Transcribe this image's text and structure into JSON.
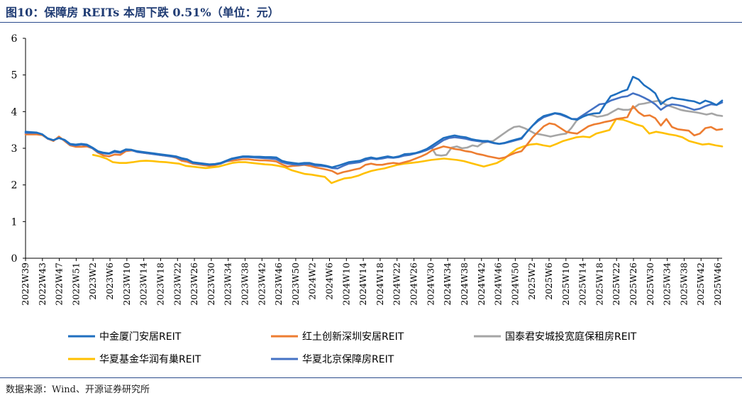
{
  "header": {
    "title": "图10：保障房 REITs 本周下跌 0.51%（单位：元）"
  },
  "footer": {
    "source": "数据来源：Wind、开源证券研究所"
  },
  "chart_data": {
    "type": "line",
    "ylim": [
      0,
      6
    ],
    "yticks": [
      0,
      1,
      2,
      3,
      4,
      5,
      6
    ],
    "grid": false,
    "legend_position": "bottom",
    "x_tick_labels": [
      "2022W39",
      "2022W43",
      "2022W47",
      "2022W51",
      "2023W2",
      "2023W6",
      "2023W10",
      "2023W14",
      "2023W18",
      "2023W22",
      "2023W26",
      "2023W30",
      "2023W34",
      "2023W38",
      "2023W42",
      "2023W46",
      "2023W50",
      "2024W2",
      "2024W6",
      "2024W10",
      "2024W14",
      "2024W18",
      "2024W22",
      "2024W26",
      "2024W30",
      "2024W34",
      "2024W38",
      "2024W42",
      "2024W46",
      "2024W50",
      "2025W2",
      "2025W6",
      "2025W10",
      "2025W14",
      "2025W18",
      "2025W22",
      "2025W26",
      "2025W30",
      "2025W34",
      "2025W38",
      "2025W42",
      "2025W46"
    ],
    "series": [
      {
        "name": "中金厦门安居REIT",
        "color": "#1f6fbf",
        "start": 0,
        "values": [
          3.45,
          3.44,
          3.43,
          3.38,
          3.27,
          3.22,
          3.28,
          3.23,
          3.12,
          3.1,
          3.12,
          3.1,
          3.02,
          2.92,
          2.88,
          2.86,
          2.93,
          2.9,
          2.97,
          2.96,
          2.92,
          2.9,
          2.88,
          2.86,
          2.84,
          2.82,
          2.8,
          2.78,
          2.73,
          2.7,
          2.62,
          2.6,
          2.58,
          2.56,
          2.57,
          2.6,
          2.66,
          2.72,
          2.75,
          2.78,
          2.78,
          2.77,
          2.77,
          2.76,
          2.76,
          2.75,
          2.66,
          2.62,
          2.6,
          2.58,
          2.6,
          2.6,
          2.56,
          2.55,
          2.52,
          2.48,
          2.52,
          2.57,
          2.62,
          2.64,
          2.66,
          2.72,
          2.75,
          2.72,
          2.75,
          2.78,
          2.75,
          2.78,
          2.84,
          2.85,
          2.87,
          2.92,
          2.98,
          3.08,
          3.18,
          3.28,
          3.32,
          3.35,
          3.32,
          3.3,
          3.25,
          3.22,
          3.2,
          3.2,
          3.15,
          3.12,
          3.15,
          3.2,
          3.24,
          3.28,
          3.45,
          3.62,
          3.78,
          3.88,
          3.92,
          3.96,
          3.94,
          3.88,
          3.8,
          3.78,
          3.86,
          3.92,
          3.95,
          3.96,
          4.2,
          4.42,
          4.48,
          4.55,
          4.6,
          4.95,
          4.88,
          4.72,
          4.62,
          4.5,
          4.2,
          4.32,
          4.38,
          4.35,
          4.33,
          4.3,
          4.28,
          4.22,
          4.3,
          4.25,
          4.18,
          4.3
        ]
      },
      {
        "name": "红土创新深圳安居REIT",
        "color": "#ed7d31",
        "start": 0,
        "values": [
          3.38,
          3.38,
          3.38,
          3.36,
          3.26,
          3.2,
          3.32,
          3.2,
          3.08,
          3.04,
          3.04,
          3.05,
          3.0,
          2.88,
          2.8,
          2.78,
          2.83,
          2.82,
          2.92,
          2.94,
          2.92,
          2.88,
          2.86,
          2.85,
          2.82,
          2.8,
          2.78,
          2.74,
          2.66,
          2.63,
          2.58,
          2.56,
          2.54,
          2.52,
          2.54,
          2.58,
          2.64,
          2.66,
          2.68,
          2.7,
          2.7,
          2.68,
          2.67,
          2.67,
          2.66,
          2.64,
          2.56,
          2.5,
          2.52,
          2.53,
          2.55,
          2.52,
          2.48,
          2.45,
          2.42,
          2.38,
          2.3,
          2.35,
          2.38,
          2.42,
          2.45,
          2.55,
          2.58,
          2.55,
          2.55,
          2.58,
          2.6,
          2.58,
          2.62,
          2.66,
          2.72,
          2.78,
          2.85,
          2.95,
          3.0,
          3.05,
          3.02,
          2.98,
          2.96,
          2.92,
          2.9,
          2.85,
          2.82,
          2.78,
          2.75,
          2.72,
          2.75,
          2.82,
          2.88,
          2.92,
          3.1,
          3.3,
          3.45,
          3.6,
          3.68,
          3.65,
          3.55,
          3.45,
          3.42,
          3.4,
          3.5,
          3.6,
          3.65,
          3.68,
          3.72,
          3.75,
          3.8,
          3.82,
          3.85,
          4.15,
          3.98,
          3.88,
          3.9,
          3.82,
          3.62,
          3.8,
          3.58,
          3.52,
          3.5,
          3.48,
          3.35,
          3.4,
          3.55,
          3.58,
          3.5,
          3.52
        ]
      },
      {
        "name": "国泰君安城投宽庭保租房REIT",
        "color": "#a5a5a5",
        "start": 73,
        "values": [
          3.05,
          2.82,
          2.8,
          2.82,
          3.02,
          3.05,
          3.0,
          3.02,
          3.08,
          3.05,
          3.15,
          3.18,
          3.2,
          3.3,
          3.4,
          3.5,
          3.58,
          3.6,
          3.55,
          3.48,
          3.4,
          3.38,
          3.35,
          3.32,
          3.35,
          3.38,
          3.4,
          3.55,
          3.75,
          3.88,
          3.92,
          3.9,
          3.86,
          3.88,
          3.92,
          4.0,
          4.08,
          4.05,
          4.05,
          4.1,
          4.2,
          4.22,
          4.25,
          4.28,
          4.3,
          4.2,
          4.15,
          4.1,
          4.05,
          4.02,
          4.0,
          3.98,
          3.95,
          3.92,
          3.95,
          3.9,
          3.88
        ]
      },
      {
        "name": "华夏基金华润有巢REIT",
        "color": "#ffc000",
        "start": 12,
        "values": [
          2.82,
          2.78,
          2.72,
          2.62,
          2.6,
          2.6,
          2.62,
          2.65,
          2.66,
          2.65,
          2.63,
          2.62,
          2.6,
          2.58,
          2.52,
          2.5,
          2.48,
          2.46,
          2.48,
          2.5,
          2.55,
          2.6,
          2.62,
          2.62,
          2.6,
          2.58,
          2.56,
          2.55,
          2.52,
          2.48,
          2.4,
          2.35,
          2.3,
          2.28,
          2.25,
          2.22,
          2.05,
          2.12,
          2.18,
          2.2,
          2.25,
          2.32,
          2.38,
          2.42,
          2.45,
          2.5,
          2.55,
          2.58,
          2.6,
          2.62,
          2.65,
          2.68,
          2.7,
          2.72,
          2.7,
          2.68,
          2.65,
          2.6,
          2.55,
          2.5,
          2.55,
          2.6,
          2.7,
          2.85,
          2.98,
          3.05,
          3.1,
          3.12,
          3.08,
          3.05,
          3.12,
          3.2,
          3.25,
          3.3,
          3.32,
          3.3,
          3.4,
          3.45,
          3.5,
          3.8,
          3.78,
          3.72,
          3.65,
          3.6,
          3.4,
          3.45,
          3.42,
          3.38,
          3.35,
          3.3,
          3.2,
          3.15,
          3.1,
          3.12,
          3.08,
          3.05
        ]
      },
      {
        "name": "华夏北京保障房REIT",
        "color": "#4472c4",
        "start": 0,
        "values": [
          3.42,
          3.42,
          3.42,
          3.38,
          3.26,
          3.22,
          3.28,
          3.22,
          3.1,
          3.08,
          3.1,
          3.08,
          3.0,
          2.9,
          2.86,
          2.85,
          2.9,
          2.88,
          2.95,
          2.95,
          2.9,
          2.88,
          2.86,
          2.84,
          2.82,
          2.8,
          2.78,
          2.76,
          2.7,
          2.68,
          2.6,
          2.58,
          2.56,
          2.55,
          2.56,
          2.58,
          2.64,
          2.7,
          2.73,
          2.76,
          2.76,
          2.75,
          2.74,
          2.73,
          2.72,
          2.7,
          2.62,
          2.58,
          2.56,
          2.55,
          2.56,
          2.57,
          2.53,
          2.52,
          2.5,
          2.46,
          2.45,
          2.52,
          2.58,
          2.6,
          2.62,
          2.68,
          2.72,
          2.7,
          2.72,
          2.75,
          2.74,
          2.76,
          2.8,
          2.82,
          2.86,
          2.9,
          2.95,
          3.02,
          3.12,
          3.22,
          3.28,
          3.3,
          3.28,
          3.26,
          3.22,
          3.2,
          3.18,
          3.18,
          3.14,
          3.12,
          3.14,
          3.18,
          3.22,
          3.26,
          3.45,
          3.62,
          3.75,
          3.85,
          3.9,
          3.95,
          3.92,
          3.86,
          3.8,
          3.8,
          3.9,
          4.0,
          4.1,
          4.2,
          4.22,
          4.3,
          4.35,
          4.4,
          4.42,
          4.5,
          4.45,
          4.38,
          4.3,
          4.2,
          4.05,
          4.15,
          4.2,
          4.18,
          4.15,
          4.1,
          4.05,
          4.08,
          4.15,
          4.2,
          4.18,
          4.25
        ]
      }
    ]
  }
}
